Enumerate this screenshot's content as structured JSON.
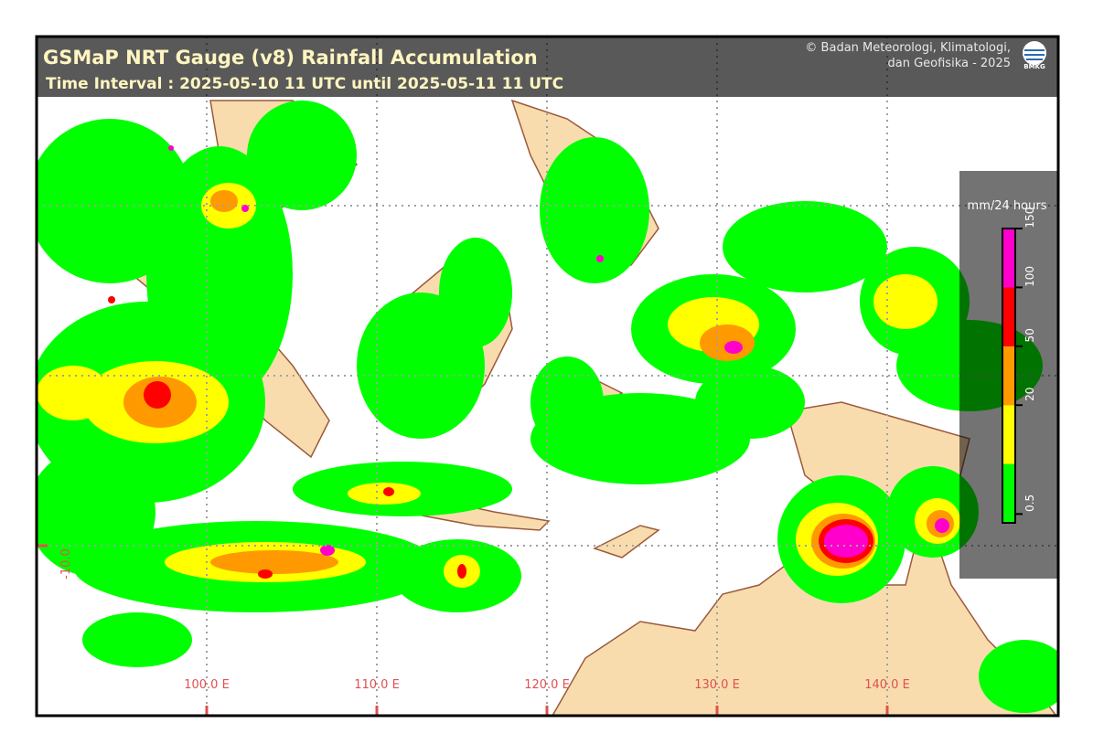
{
  "header": {
    "title": "GSMaP NRT Gauge (v8) Rainfall Accumulation",
    "subtitle": "Time Interval : 2025-05-10 11 UTC until 2025-05-11 11 UTC",
    "credit_line1": "© Badan Meteorologi, Klimatologi,",
    "credit_line2": "dan Geofisika -  2025",
    "logo": "BMKG"
  },
  "legend": {
    "title": "mm/24 hours",
    "ticks": [
      0.5,
      20,
      50,
      100,
      150
    ],
    "colors": [
      "#00ff00",
      "#ffff00",
      "#ff9900",
      "#ff0000",
      "#ff00cc"
    ]
  },
  "map": {
    "lon_labels": [
      "100.0 E",
      "110.0 E",
      "120.0 E",
      "130.0 E",
      "140.0 E"
    ],
    "lat_labels": [
      "-10.0"
    ]
  }
}
